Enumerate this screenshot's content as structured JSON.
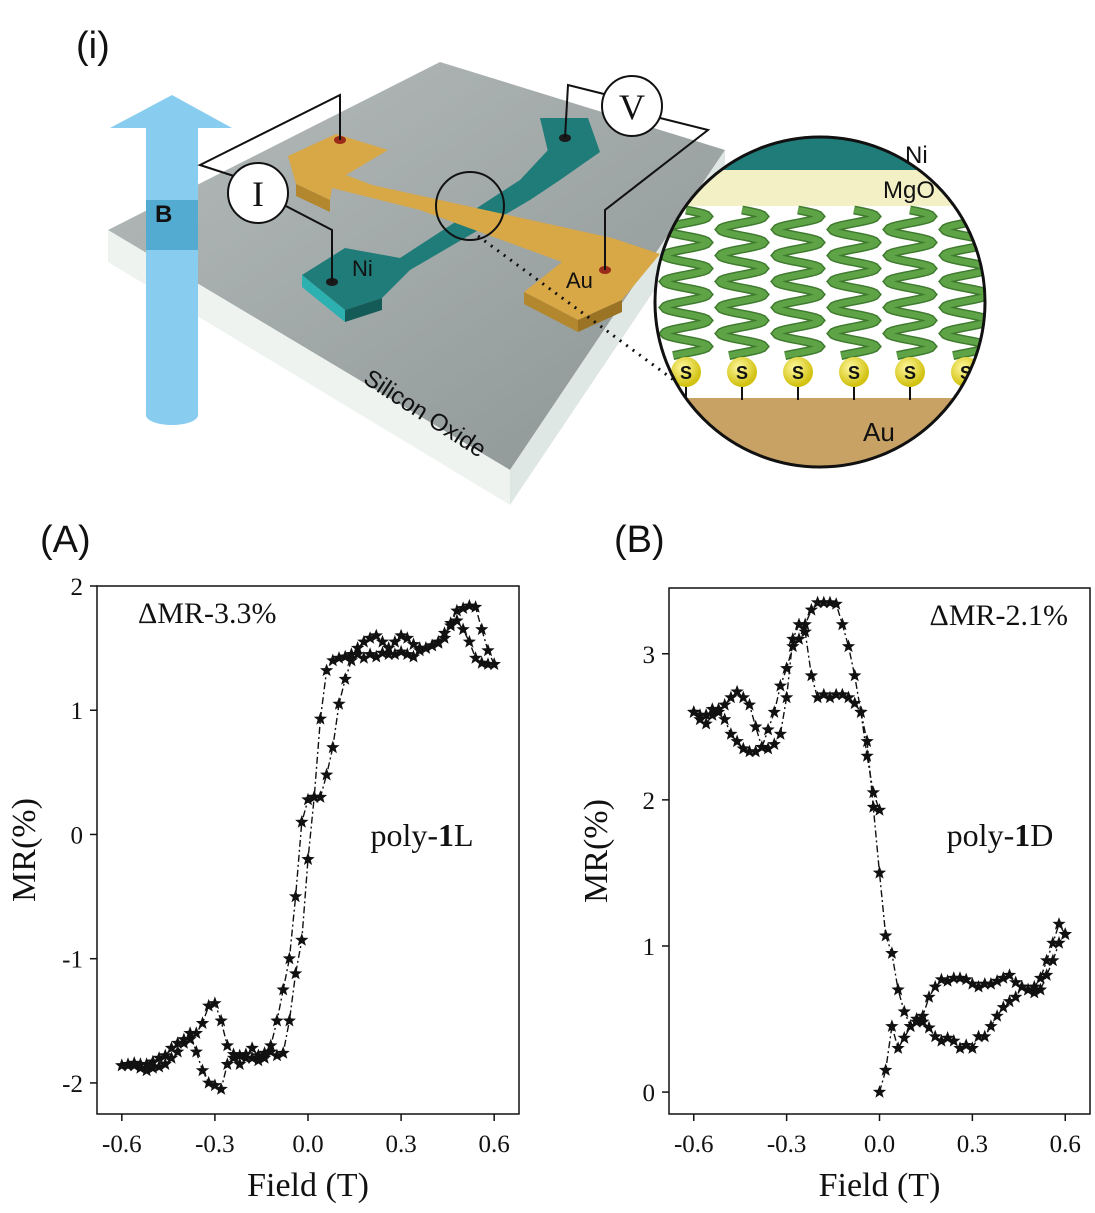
{
  "panel_labels": {
    "schematic": "(i)",
    "a": "(A)",
    "b": "(B)"
  },
  "schematic": {
    "field_label": "B",
    "current_label": "I",
    "voltage_label": "V",
    "ni_label": "Ni",
    "au_label": "Au",
    "substrate_label": "Silicon Oxide",
    "inset": {
      "layers": [
        "Ni",
        "MgO",
        "Au"
      ],
      "anchor_label": "S",
      "anchor_count": 6
    },
    "colors": {
      "ni": "#1f7c79",
      "au": "#d8a746",
      "substrate": "#9ea6a6",
      "arrow": "#88ccf0",
      "helix": "#5ea447",
      "sulfur": "#e8dc1c",
      "mgo": "#f4f0c6"
    }
  },
  "chart_data": [
    {
      "type": "line",
      "panel": "A",
      "annotation": "ΔMR-3.3%",
      "sample": "poly-",
      "sample_bold": "1",
      "sample_suffix": "L",
      "xlabel": "Field (T)",
      "ylabel": "MR(%)",
      "xlim": [
        -0.68,
        0.68
      ],
      "ylim": [
        -2.25,
        2.0
      ],
      "xticks": [
        "-0.6",
        "-0.3",
        "0.0",
        "0.3",
        "0.6"
      ],
      "yticks": [
        "2",
        "1",
        "0",
        "-1",
        "-2"
      ],
      "marker": "star",
      "series": [
        {
          "x": [
            0.6,
            0.58,
            0.56,
            0.54,
            0.52,
            0.5,
            0.48,
            0.46,
            0.44,
            0.42,
            0.4,
            0.38,
            0.36,
            0.34,
            0.32,
            0.3,
            0.28,
            0.26,
            0.24,
            0.22,
            0.2,
            0.18,
            0.16,
            0.14,
            0.12,
            0.1,
            0.08,
            0.06,
            0.04,
            0.02,
            0.0,
            -0.02,
            -0.04,
            -0.06,
            -0.08,
            -0.1,
            -0.12,
            -0.14,
            -0.16,
            -0.18,
            -0.2,
            -0.22,
            -0.24,
            -0.26,
            -0.28,
            -0.3,
            -0.32,
            -0.34,
            -0.36,
            -0.38,
            -0.4,
            -0.42,
            -0.44,
            -0.46,
            -0.48,
            -0.5,
            -0.52,
            -0.54,
            -0.56,
            -0.58,
            -0.6
          ],
          "y": [
            1.37,
            1.48,
            1.65,
            1.83,
            1.84,
            1.82,
            1.8,
            1.7,
            1.58,
            1.55,
            1.52,
            1.5,
            1.5,
            1.53,
            1.58,
            1.6,
            1.55,
            1.5,
            1.55,
            1.6,
            1.58,
            1.55,
            1.5,
            1.45,
            1.43,
            1.42,
            1.4,
            1.32,
            0.93,
            0.3,
            -0.2,
            -0.85,
            -1.12,
            -1.5,
            -1.76,
            -1.78,
            -1.75,
            -1.8,
            -1.78,
            -1.72,
            -1.8,
            -1.85,
            -1.77,
            -1.7,
            -1.5,
            -1.36,
            -1.38,
            -1.52,
            -1.6,
            -1.65,
            -1.65,
            -1.68,
            -1.72,
            -1.78,
            -1.8,
            -1.83,
            -1.85,
            -1.85,
            -1.84,
            -1.86,
            -1.86
          ]
        },
        {
          "x": [
            -0.6,
            -0.58,
            -0.56,
            -0.54,
            -0.52,
            -0.5,
            -0.48,
            -0.46,
            -0.44,
            -0.42,
            -0.4,
            -0.38,
            -0.36,
            -0.34,
            -0.32,
            -0.3,
            -0.28,
            -0.26,
            -0.24,
            -0.22,
            -0.2,
            -0.18,
            -0.16,
            -0.14,
            -0.12,
            -0.1,
            -0.08,
            -0.06,
            -0.04,
            -0.02,
            0.0,
            0.02,
            0.04,
            0.06,
            0.08,
            0.1,
            0.12,
            0.14,
            0.16,
            0.18,
            0.2,
            0.22,
            0.24,
            0.26,
            0.28,
            0.3,
            0.32,
            0.34,
            0.36,
            0.38,
            0.4,
            0.42,
            0.44,
            0.46,
            0.48,
            0.5,
            0.52,
            0.54,
            0.56,
            0.58,
            0.6
          ],
          "y": [
            -1.86,
            -1.85,
            -1.86,
            -1.88,
            -1.9,
            -1.88,
            -1.87,
            -1.85,
            -1.8,
            -1.75,
            -1.68,
            -1.6,
            -1.75,
            -1.9,
            -2.0,
            -2.02,
            -2.05,
            -1.85,
            -1.8,
            -1.78,
            -1.77,
            -1.8,
            -1.82,
            -1.76,
            -1.7,
            -1.5,
            -1.25,
            -1.0,
            -0.5,
            0.1,
            0.28,
            0.3,
            0.3,
            0.48,
            0.7,
            1.05,
            1.25,
            1.4,
            1.45,
            1.42,
            1.45,
            1.43,
            1.46,
            1.45,
            1.45,
            1.47,
            1.45,
            1.43,
            1.48,
            1.5,
            1.52,
            1.54,
            1.62,
            1.68,
            1.72,
            1.65,
            1.55,
            1.42,
            1.38,
            1.37,
            1.37
          ]
        }
      ]
    },
    {
      "type": "line",
      "panel": "B",
      "annotation": "ΔMR-2.1%",
      "sample": "poly-",
      "sample_bold": "1",
      "sample_suffix": "D",
      "xlabel": "Field (T)",
      "ylabel": "MR(%)",
      "xlim": [
        -0.68,
        0.68
      ],
      "ylim": [
        -0.15,
        3.45
      ],
      "xticks": [
        "-0.6",
        "-0.3",
        "0.0",
        "0.3",
        "0.6"
      ],
      "yticks": [
        "3",
        "2",
        "1",
        "0"
      ],
      "marker": "star",
      "series": [
        {
          "x": [
            0.0,
            0.02,
            0.04,
            0.06,
            0.08,
            0.1,
            0.12,
            0.14,
            0.16,
            0.18,
            0.2,
            0.22,
            0.24,
            0.26,
            0.28,
            0.3,
            0.32,
            0.34,
            0.36,
            0.38,
            0.4,
            0.42,
            0.44,
            0.46,
            0.48,
            0.5,
            0.52,
            0.54,
            0.56,
            0.58,
            0.6
          ],
          "y": [
            0.0,
            0.15,
            0.45,
            0.3,
            0.37,
            0.45,
            0.5,
            0.48,
            0.44,
            0.38,
            0.35,
            0.37,
            0.35,
            0.3,
            0.32,
            0.3,
            0.38,
            0.38,
            0.45,
            0.52,
            0.58,
            0.62,
            0.65,
            0.72,
            0.7,
            0.68,
            0.7,
            0.8,
            0.9,
            1.02,
            1.08
          ]
        },
        {
          "x": [
            0.6,
            0.58,
            0.56,
            0.54,
            0.52,
            0.5,
            0.48,
            0.46,
            0.44,
            0.42,
            0.4,
            0.38,
            0.36,
            0.34,
            0.32,
            0.3,
            0.28,
            0.26,
            0.24,
            0.22,
            0.2,
            0.18,
            0.16,
            0.14,
            0.12,
            0.1,
            0.08,
            0.06,
            0.04,
            0.02,
            0.0,
            -0.02,
            -0.04,
            -0.06,
            -0.08,
            -0.1,
            -0.12,
            -0.14,
            -0.16,
            -0.18,
            -0.2,
            -0.22,
            -0.24,
            -0.26,
            -0.28,
            -0.3,
            -0.32,
            -0.34,
            -0.36,
            -0.38,
            -0.4,
            -0.42,
            -0.44,
            -0.46,
            -0.48,
            -0.5,
            -0.52,
            -0.54,
            -0.56,
            -0.58,
            -0.6
          ],
          "y": [
            1.08,
            1.15,
            1.02,
            0.9,
            0.78,
            0.72,
            0.7,
            0.72,
            0.75,
            0.8,
            0.78,
            0.76,
            0.74,
            0.74,
            0.72,
            0.74,
            0.77,
            0.78,
            0.78,
            0.76,
            0.77,
            0.72,
            0.65,
            0.52,
            0.48,
            0.45,
            0.55,
            0.7,
            0.95,
            1.07,
            1.5,
            1.95,
            2.4,
            2.6,
            2.66,
            2.7,
            2.72,
            2.72,
            2.7,
            2.72,
            2.7,
            2.85,
            3.15,
            3.2,
            3.1,
            2.7,
            2.45,
            2.38,
            2.35,
            2.36,
            2.5,
            2.65,
            2.7,
            2.74,
            2.7,
            2.65,
            2.6,
            2.62,
            2.58,
            2.55,
            2.6
          ]
        },
        {
          "x": [
            -0.6,
            -0.58,
            -0.56,
            -0.54,
            -0.52,
            -0.5,
            -0.48,
            -0.46,
            -0.44,
            -0.42,
            -0.4,
            -0.38,
            -0.36,
            -0.34,
            -0.32,
            -0.3,
            -0.28,
            -0.26,
            -0.24,
            -0.22,
            -0.2,
            -0.18,
            -0.16,
            -0.14,
            -0.12,
            -0.1,
            -0.08,
            -0.06,
            -0.04,
            -0.02,
            0.0
          ],
          "y": [
            2.6,
            2.58,
            2.52,
            2.58,
            2.62,
            2.55,
            2.45,
            2.4,
            2.35,
            2.33,
            2.33,
            2.36,
            2.48,
            2.6,
            2.78,
            2.9,
            3.05,
            3.1,
            3.2,
            3.3,
            3.35,
            3.35,
            3.35,
            3.34,
            3.2,
            3.05,
            2.85,
            2.6,
            2.3,
            2.05,
            1.93
          ]
        }
      ]
    }
  ]
}
